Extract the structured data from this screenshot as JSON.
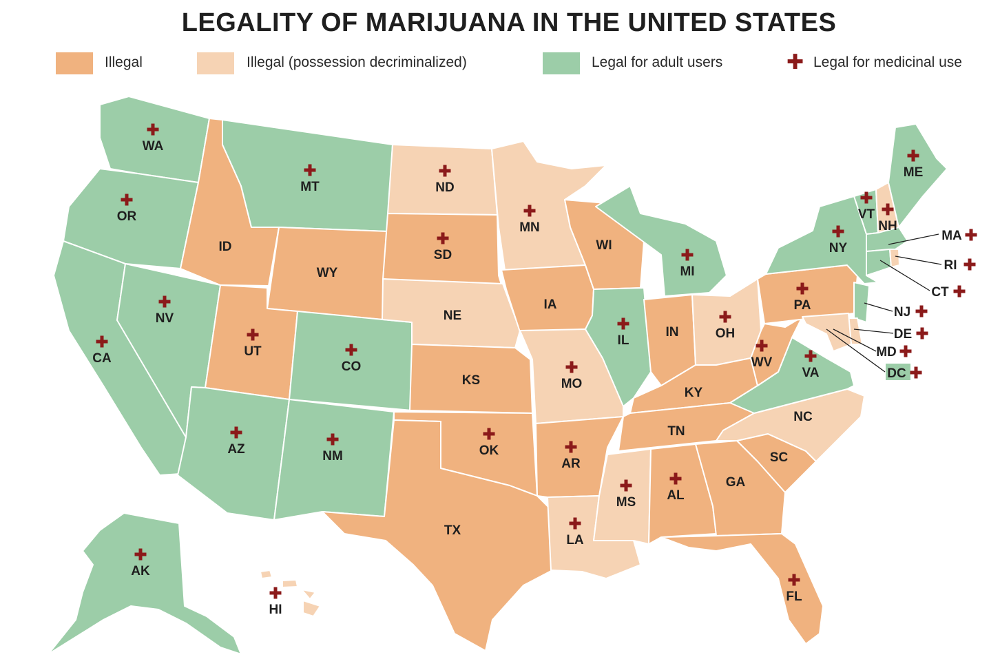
{
  "title": "LEGALITY OF MARIJUANA IN THE UNITED STATES",
  "colors": {
    "illegal": "#f0b27f",
    "decriminalized": "#f6d3b4",
    "legal": "#9ccda8",
    "medicinal_marker": "#8b1a1a"
  },
  "legend": {
    "illegal": "Illegal",
    "decriminalized": "Illegal (possession decriminalized)",
    "legal": "Legal for adult users",
    "medicinal": "Legal for medicinal use"
  },
  "states": {
    "WA": {
      "label": "WA",
      "status": "legal",
      "medicinal": true
    },
    "OR": {
      "label": "OR",
      "status": "legal",
      "medicinal": true
    },
    "CA": {
      "label": "CA",
      "status": "legal",
      "medicinal": true
    },
    "NV": {
      "label": "NV",
      "status": "legal",
      "medicinal": true
    },
    "ID": {
      "label": "ID",
      "status": "illegal",
      "medicinal": false
    },
    "MT": {
      "label": "MT",
      "status": "legal",
      "medicinal": true
    },
    "WY": {
      "label": "WY",
      "status": "illegal",
      "medicinal": false
    },
    "UT": {
      "label": "UT",
      "status": "illegal",
      "medicinal": true
    },
    "CO": {
      "label": "CO",
      "status": "legal",
      "medicinal": true
    },
    "AZ": {
      "label": "AZ",
      "status": "legal",
      "medicinal": true
    },
    "NM": {
      "label": "NM",
      "status": "legal",
      "medicinal": true
    },
    "ND": {
      "label": "ND",
      "status": "decriminalized",
      "medicinal": true
    },
    "SD": {
      "label": "SD",
      "status": "illegal",
      "medicinal": true
    },
    "NE": {
      "label": "NE",
      "status": "decriminalized",
      "medicinal": false
    },
    "KS": {
      "label": "KS",
      "status": "illegal",
      "medicinal": false
    },
    "OK": {
      "label": "OK",
      "status": "illegal",
      "medicinal": true
    },
    "TX": {
      "label": "TX",
      "status": "illegal",
      "medicinal": false
    },
    "MN": {
      "label": "MN",
      "status": "decriminalized",
      "medicinal": true
    },
    "IA": {
      "label": "IA",
      "status": "illegal",
      "medicinal": false
    },
    "MO": {
      "label": "MO",
      "status": "decriminalized",
      "medicinal": true
    },
    "AR": {
      "label": "AR",
      "status": "illegal",
      "medicinal": true
    },
    "LA": {
      "label": "LA",
      "status": "decriminalized",
      "medicinal": true
    },
    "WI": {
      "label": "WI",
      "status": "illegal",
      "medicinal": false
    },
    "IL": {
      "label": "IL",
      "status": "legal",
      "medicinal": true
    },
    "MI": {
      "label": "MI",
      "status": "legal",
      "medicinal": true
    },
    "IN": {
      "label": "IN",
      "status": "illegal",
      "medicinal": false
    },
    "OH": {
      "label": "OH",
      "status": "decriminalized",
      "medicinal": true
    },
    "KY": {
      "label": "KY",
      "status": "illegal",
      "medicinal": false
    },
    "TN": {
      "label": "TN",
      "status": "illegal",
      "medicinal": false
    },
    "MS": {
      "label": "MS",
      "status": "decriminalized",
      "medicinal": true
    },
    "AL": {
      "label": "AL",
      "status": "illegal",
      "medicinal": true
    },
    "GA": {
      "label": "GA",
      "status": "illegal",
      "medicinal": false
    },
    "FL": {
      "label": "FL",
      "status": "illegal",
      "medicinal": true
    },
    "SC": {
      "label": "SC",
      "status": "illegal",
      "medicinal": false
    },
    "NC": {
      "label": "NC",
      "status": "decriminalized",
      "medicinal": false
    },
    "VA": {
      "label": "VA",
      "status": "legal",
      "medicinal": true
    },
    "WV": {
      "label": "WV",
      "status": "illegal",
      "medicinal": true
    },
    "PA": {
      "label": "PA",
      "status": "illegal",
      "medicinal": true
    },
    "NY": {
      "label": "NY",
      "status": "legal",
      "medicinal": true
    },
    "VT": {
      "label": "VT",
      "status": "legal",
      "medicinal": true
    },
    "NH": {
      "label": "NH",
      "status": "decriminalized",
      "medicinal": true
    },
    "ME": {
      "label": "ME",
      "status": "legal",
      "medicinal": true
    },
    "MA": {
      "label": "MA",
      "status": "legal",
      "medicinal": true
    },
    "RI": {
      "label": "RI",
      "status": "decriminalized",
      "medicinal": true
    },
    "CT": {
      "label": "CT",
      "status": "legal",
      "medicinal": true
    },
    "NJ": {
      "label": "NJ",
      "status": "legal",
      "medicinal": true
    },
    "DE": {
      "label": "DE",
      "status": "decriminalized",
      "medicinal": true
    },
    "MD": {
      "label": "MD",
      "status": "decriminalized",
      "medicinal": true
    },
    "DC": {
      "label": "DC",
      "status": "legal",
      "medicinal": true
    },
    "AK": {
      "label": "AK",
      "status": "legal",
      "medicinal": true
    },
    "HI": {
      "label": "HI",
      "status": "decriminalized",
      "medicinal": true
    }
  }
}
